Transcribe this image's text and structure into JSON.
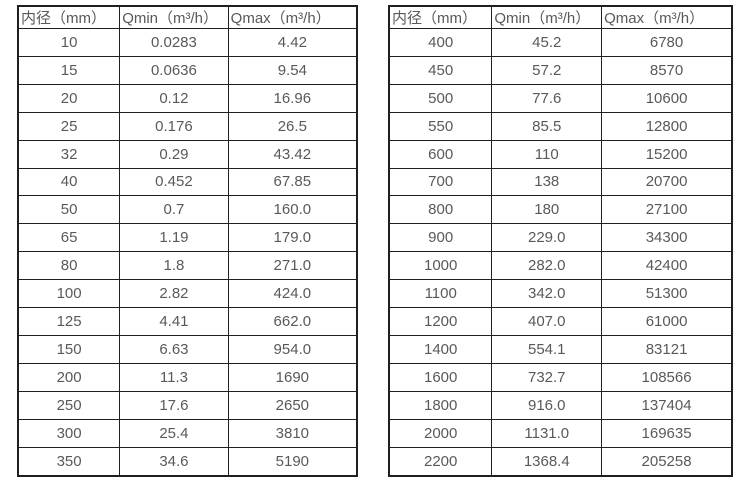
{
  "colors": {
    "background": "#ffffff",
    "border": "#1f1f1f",
    "text": "#595959"
  },
  "tables": [
    {
      "name": "flow-table-small-diameters",
      "headers": [
        "内径（mm）",
        "Qmin（m³/h）",
        "Qmax（m³/h）"
      ],
      "rows": [
        [
          "10",
          "0.0283",
          "4.42"
        ],
        [
          "15",
          "0.0636",
          "9.54"
        ],
        [
          "20",
          "0.12",
          "16.96"
        ],
        [
          "25",
          "0.176",
          "26.5"
        ],
        [
          "32",
          "0.29",
          "43.42"
        ],
        [
          "40",
          "0.452",
          "67.85"
        ],
        [
          "50",
          "0.7",
          "160.0"
        ],
        [
          "65",
          "1.19",
          "179.0"
        ],
        [
          "80",
          "1.8",
          "271.0"
        ],
        [
          "100",
          "2.82",
          "424.0"
        ],
        [
          "125",
          "4.41",
          "662.0"
        ],
        [
          "150",
          "6.63",
          "954.0"
        ],
        [
          "200",
          "11.3",
          "1690"
        ],
        [
          "250",
          "17.6",
          "2650"
        ],
        [
          "300",
          "25.4",
          "3810"
        ],
        [
          "350",
          "34.6",
          "5190"
        ]
      ]
    },
    {
      "name": "flow-table-large-diameters",
      "headers": [
        "内径（mm）",
        "Qmin（m³/h）",
        "Qmax（m³/h）"
      ],
      "rows": [
        [
          "400",
          "45.2",
          "6780"
        ],
        [
          "450",
          "57.2",
          "8570"
        ],
        [
          "500",
          "77.6",
          "10600"
        ],
        [
          "550",
          "85.5",
          "12800"
        ],
        [
          "600",
          "110",
          "15200"
        ],
        [
          "700",
          "138",
          "20700"
        ],
        [
          "800",
          "180",
          "27100"
        ],
        [
          "900",
          "229.0",
          "34300"
        ],
        [
          "1000",
          "282.0",
          "42400"
        ],
        [
          "1100",
          "342.0",
          "51300"
        ],
        [
          "1200",
          "407.0",
          "61000"
        ],
        [
          "1400",
          "554.1",
          "83121"
        ],
        [
          "1600",
          "732.7",
          "108566"
        ],
        [
          "1800",
          "916.0",
          "137404"
        ],
        [
          "2000",
          "1131.0",
          "169635"
        ],
        [
          "2200",
          "1368.4",
          "205258"
        ]
      ]
    }
  ]
}
